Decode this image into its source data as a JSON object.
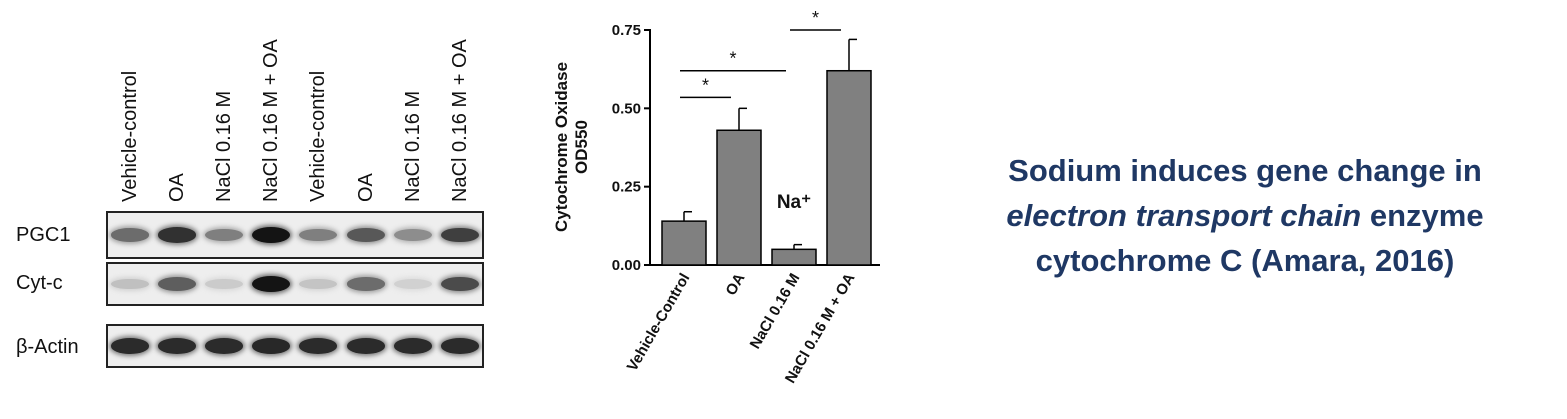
{
  "blot": {
    "lane_labels": [
      "Vehicle-control",
      "OA",
      "NaCl 0.16 M",
      "NaCl 0.16 M + OA",
      "Vehicle-control",
      "OA",
      "NaCl 0.16 M",
      "NaCl 0.16 M + OA"
    ],
    "rows": [
      {
        "label": "PGC1",
        "intensity": [
          0.55,
          0.85,
          0.45,
          1.0,
          0.45,
          0.65,
          0.38,
          0.78
        ]
      },
      {
        "label": "Cyt-c",
        "intensity": [
          0.12,
          0.62,
          0.06,
          1.0,
          0.1,
          0.55,
          0.03,
          0.72
        ]
      },
      {
        "label": "β-Actin",
        "intensity": [
          0.88,
          0.88,
          0.88,
          0.9,
          0.88,
          0.88,
          0.88,
          0.88
        ]
      }
    ]
  },
  "chart_data": {
    "type": "bar",
    "ylabel_line1": "Cytochrome Oxidase",
    "ylabel_line2": "OD550",
    "categories": [
      "Vehicle-Control",
      "OA",
      "NaCl 0.16 M",
      "NaCl 0.16 M + OA"
    ],
    "values": [
      0.14,
      0.43,
      0.05,
      0.62
    ],
    "errors": [
      0.03,
      0.07,
      0.015,
      0.1
    ],
    "ylim": [
      0,
      0.75
    ],
    "yticks": [
      "0.00",
      "0.25",
      "0.50",
      "0.75"
    ],
    "bar_color": "#808080",
    "annotation": "Na⁺",
    "significance": [
      {
        "from": 0,
        "to": 1,
        "label": "*"
      },
      {
        "from": 0,
        "to": 2,
        "label": "*"
      },
      {
        "from": 2,
        "to": 3,
        "label": "*"
      }
    ]
  },
  "caption": {
    "line1": "Sodium induces gene change in",
    "line2_italic": "electron transport chain",
    "line2_rest": " enzyme",
    "line3": "cytochrome C (Amara, 2016)",
    "color": "#1f3864"
  }
}
